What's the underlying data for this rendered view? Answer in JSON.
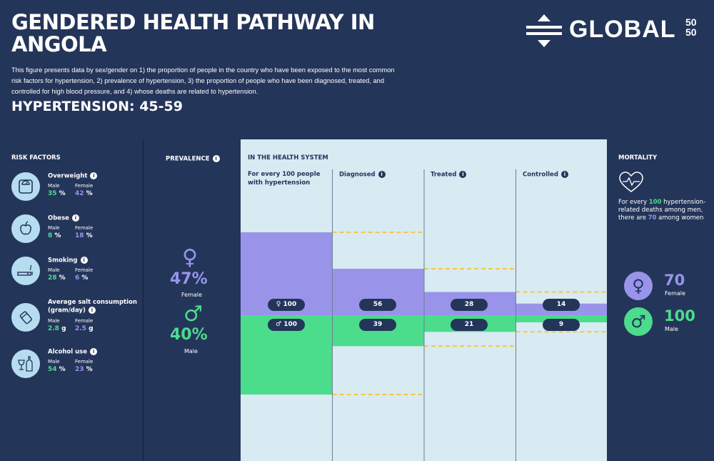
{
  "header": {
    "title": "GENDERED HEALTH PATHWAY IN ANGOLA",
    "description": "This figure presents data by sex/gender on 1) the proportion of people in the country who have been exposed to the most common risk factors for hypertension, 2) prevalence of hypertension, 3) the proportion of people who have been diagnosed, treated, and controlled for high blood pressure, and 4) whose deaths are related to hypertension.",
    "subtitle": "HYPERTENSION: 45-59"
  },
  "logo": {
    "text": "GLOBAL",
    "num_top": "50",
    "num_bottom": "50"
  },
  "risk_factors": {
    "heading": "RISK FACTORS",
    "male_label": "Male",
    "female_label": "Female",
    "items": [
      {
        "name": "Overweight",
        "icon": "scale-icon",
        "male": "35",
        "female": "42",
        "unit": "%"
      },
      {
        "name": "Obese",
        "icon": "apple-icon",
        "male": "8",
        "female": "18",
        "unit": "%"
      },
      {
        "name": "Smoking",
        "icon": "cigarette-icon",
        "male": "28",
        "female": "6",
        "unit": "%"
      },
      {
        "name": "Average salt consumption (gram/day)",
        "icon": "salt-icon",
        "male": "2.8",
        "female": "2.5",
        "unit": "g"
      },
      {
        "name": "Alcohol use",
        "icon": "bottle-icon",
        "male": "54",
        "female": "23",
        "unit": "%"
      }
    ]
  },
  "prevalence": {
    "heading": "PREVALENCE",
    "female_value": "47%",
    "female_label": "Female",
    "male_value": "40%",
    "male_label": "Male"
  },
  "health_system": {
    "heading": "IN THE HEALTH SYSTEM",
    "first_column_label": "For every 100 people with hypertension"
  },
  "mortality": {
    "heading": "MORTALITY",
    "text_pre": "For every ",
    "text_num1": "100",
    "text_mid": " hypertension-related deaths among men, there are ",
    "text_num2": "70",
    "text_post": " among women",
    "female_value": "70",
    "female_label": "Female",
    "male_value": "100",
    "male_label": "Male"
  },
  "colors": {
    "female": "#9994ea",
    "male": "#4bdc8c",
    "background": "#24355a",
    "panel": "#d8eaf2",
    "dashed": "#f5c842"
  },
  "chart_data": {
    "type": "bar",
    "categories": [
      "For every 100 people with hypertension",
      "Diagnosed",
      "Treated",
      "Controlled"
    ],
    "series": [
      {
        "name": "Female",
        "symbol": "♀",
        "values": [
          100,
          56,
          28,
          14
        ]
      },
      {
        "name": "Male",
        "symbol": "♂",
        "values": [
          100,
          39,
          21,
          9
        ]
      }
    ]
  }
}
